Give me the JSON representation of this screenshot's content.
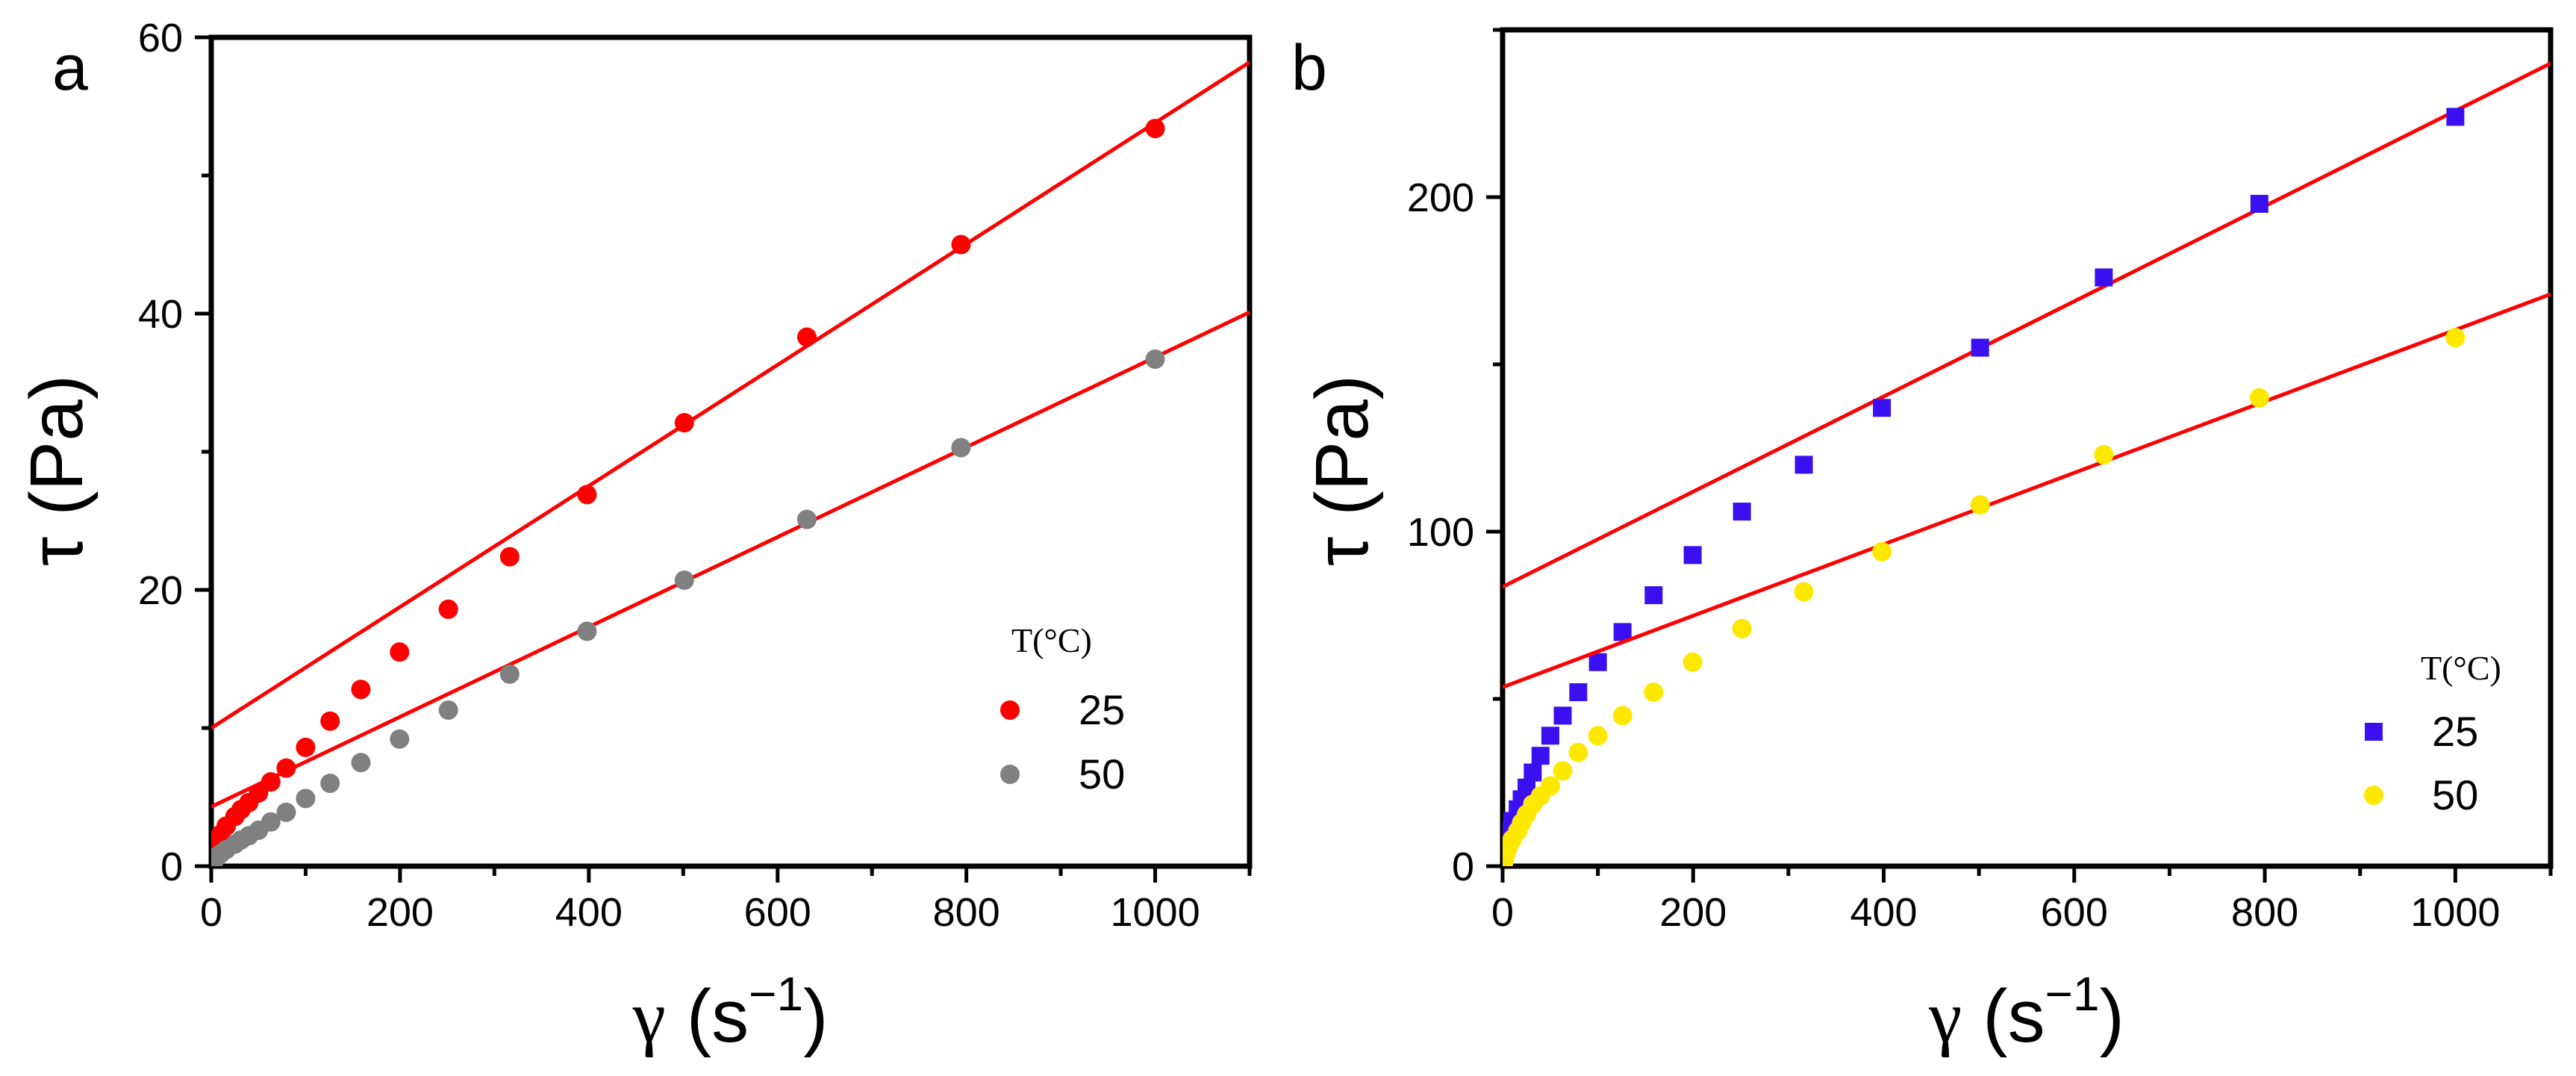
{
  "colors": {
    "fit_line": "#ff0000",
    "axis": "#000000"
  },
  "chart_data": [
    {
      "panel_label": "a",
      "type": "scatter",
      "xlabel": {
        "symbol": "γ",
        "unit": "(s",
        "sup": "−1",
        "close": ")"
      },
      "ylabel": "τ (Pa)",
      "xlim": [
        0,
        1100
      ],
      "ylim": [
        0,
        60
      ],
      "xticks": [
        0,
        200,
        400,
        600,
        800,
        1000
      ],
      "yticks": [
        0,
        20,
        40,
        60
      ],
      "legend": {
        "title": "T(°C)",
        "position": "bottom-right"
      },
      "series": [
        {
          "name": "25",
          "marker": "circle",
          "color": "#ff0000",
          "x": [
            1,
            1.6,
            2.5,
            4,
            6.3,
            10,
            15.8,
            25.1,
            31.6,
            39.8,
            50.1,
            63.1,
            79.4,
            100,
            125.9,
            158.5,
            199.5,
            251.2,
            316.2,
            398.1,
            501.2,
            631,
            794.3,
            1000
          ],
          "y": [
            0.6,
            0.8,
            1.1,
            1.4,
            1.8,
            2.3,
            2.9,
            3.6,
            4.1,
            4.6,
            5.3,
            6.1,
            7.1,
            8.6,
            10.5,
            12.8,
            15.5,
            18.6,
            22.4,
            26.9,
            32.1,
            38.3,
            45.0,
            53.4
          ],
          "fit": {
            "x": [
              0,
              1100
            ],
            "y": [
              10,
              58.2
            ]
          }
        },
        {
          "name": "50",
          "marker": "circle",
          "color": "#808080",
          "x": [
            1,
            1.6,
            2.5,
            4,
            6.3,
            10,
            15.8,
            25.1,
            31.6,
            39.8,
            50.1,
            63.1,
            79.4,
            100,
            125.9,
            158.5,
            199.5,
            251.2,
            316.2,
            398.1,
            501.2,
            631,
            794.3,
            1000
          ],
          "y": [
            0.2,
            0.3,
            0.4,
            0.5,
            0.7,
            0.9,
            1.2,
            1.6,
            1.9,
            2.2,
            2.6,
            3.2,
            3.9,
            4.9,
            6.0,
            7.5,
            9.2,
            11.3,
            13.9,
            17.0,
            20.7,
            25.1,
            30.3,
            36.7
          ],
          "fit": {
            "x": [
              0,
              1100
            ],
            "y": [
              4.3,
              40.1
            ]
          }
        }
      ]
    },
    {
      "panel_label": "b",
      "type": "scatter",
      "xlabel": {
        "symbol": "γ",
        "unit": "(s",
        "sup": "−1",
        "close": ")"
      },
      "ylabel": "τ (Pa)",
      "xlim": [
        0,
        1100
      ],
      "ylim": [
        0,
        250
      ],
      "xticks": [
        0,
        200,
        400,
        600,
        800,
        1000
      ],
      "yticks": [
        0,
        100,
        200
      ],
      "legend": {
        "title": "T(°C)",
        "position": "bottom-right"
      },
      "series": [
        {
          "name": "25",
          "marker": "square",
          "color": "#3a10f0",
          "x": [
            1,
            1.6,
            2.5,
            4,
            6.3,
            10,
            15.8,
            20,
            25.1,
            31.6,
            39.8,
            50.1,
            63.1,
            79.4,
            100,
            125.9,
            158.5,
            199.5,
            251.2,
            316.2,
            398.1,
            501.2,
            631,
            794.3,
            1000
          ],
          "y": [
            3,
            4.5,
            6,
            8,
            10.5,
            13.5,
            17,
            20,
            23.5,
            28,
            33,
            39,
            45,
            52,
            61,
            70,
            81,
            93,
            106,
            120,
            137,
            155,
            176,
            198,
            224
          ],
          "fit": {
            "x": [
              0,
              1100
            ],
            "y": [
              83.5,
              240
            ]
          }
        },
        {
          "name": "50",
          "marker": "circle",
          "color": "#ffe800",
          "x": [
            1,
            1.6,
            2.5,
            4,
            6.3,
            10,
            15.8,
            20,
            25.1,
            31.6,
            39.8,
            50.1,
            63.1,
            79.4,
            100,
            125.9,
            158.5,
            199.5,
            251.2,
            316.2,
            398.1,
            501.2,
            631,
            794.3,
            1000
          ],
          "y": [
            1,
            2,
            3,
            4.5,
            6,
            8,
            10.5,
            13,
            15.5,
            18.5,
            21,
            24,
            28.5,
            34,
            39,
            45,
            52,
            61,
            71,
            82,
            94,
            108,
            123,
            140,
            158
          ],
          "fit": {
            "x": [
              0,
              1100
            ],
            "y": [
              53.5,
              171
            ]
          }
        }
      ]
    }
  ]
}
